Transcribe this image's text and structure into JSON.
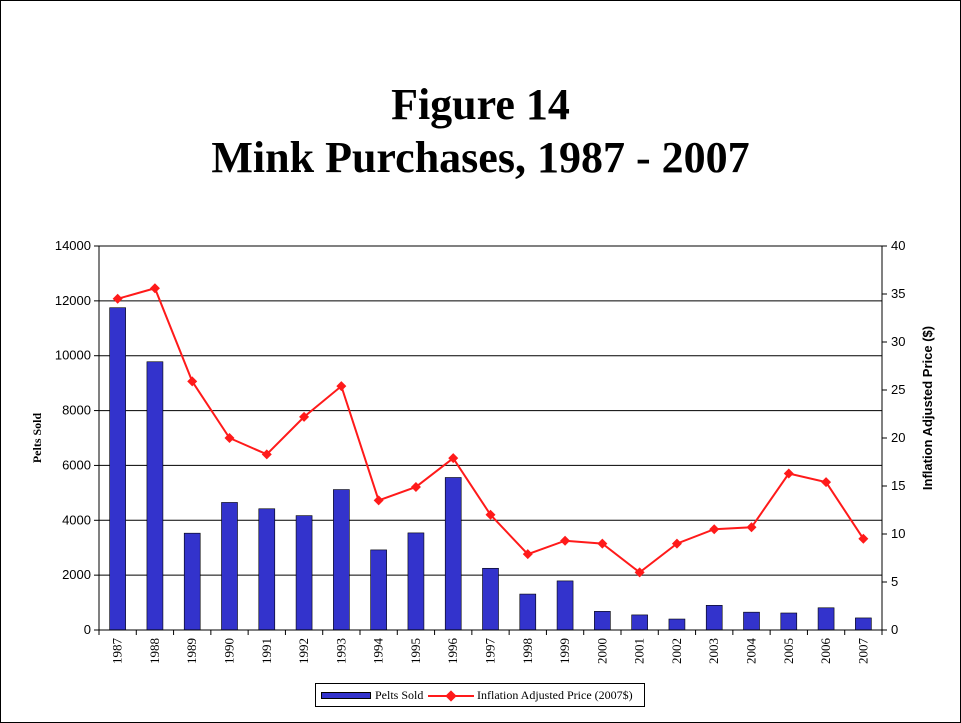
{
  "title_line1": "Figure 14",
  "title_line2": "Mink Purchases, 1987 - 2007",
  "chart_data": {
    "type": "bar+line",
    "title": "Figure 14 Mink Purchases, 1987 - 2007",
    "categories": [
      "1987",
      "1988",
      "1989",
      "1990",
      "1991",
      "1992",
      "1993",
      "1994",
      "1995",
      "1996",
      "1997",
      "1998",
      "1999",
      "2000",
      "2001",
      "2002",
      "2003",
      "2004",
      "2005",
      "2006",
      "2007"
    ],
    "series": [
      {
        "name": "Pelts Sold",
        "type": "bar",
        "axis": "left",
        "color": "#3333cc",
        "values": [
          11750,
          9780,
          3530,
          4650,
          4420,
          4170,
          5120,
          2920,
          3540,
          5560,
          2250,
          1310,
          1790,
          680,
          550,
          400,
          900,
          650,
          620,
          810,
          440
        ]
      },
      {
        "name": "Inflation Adjusted Price (2007$)",
        "type": "line",
        "axis": "right",
        "color": "#ff1a1a",
        "values": [
          34.5,
          35.6,
          25.9,
          20.0,
          18.3,
          22.2,
          25.4,
          13.5,
          14.9,
          17.9,
          12.0,
          7.9,
          9.3,
          9.0,
          6.0,
          9.0,
          10.5,
          10.7,
          16.3,
          15.4,
          9.5
        ]
      }
    ],
    "ylabel": "Pelts Sold",
    "y2label": "Inflation Adjusted Price ($)",
    "ylim": [
      0,
      14000
    ],
    "y2lim": [
      0,
      40
    ],
    "yticks": [
      "0",
      "2000",
      "4000",
      "6000",
      "8000",
      "10000",
      "12000",
      "14000"
    ],
    "y2ticks": [
      "0",
      "5",
      "10",
      "15",
      "20",
      "25",
      "30",
      "35",
      "40"
    ],
    "grid": true,
    "legend_position": "bottom"
  }
}
